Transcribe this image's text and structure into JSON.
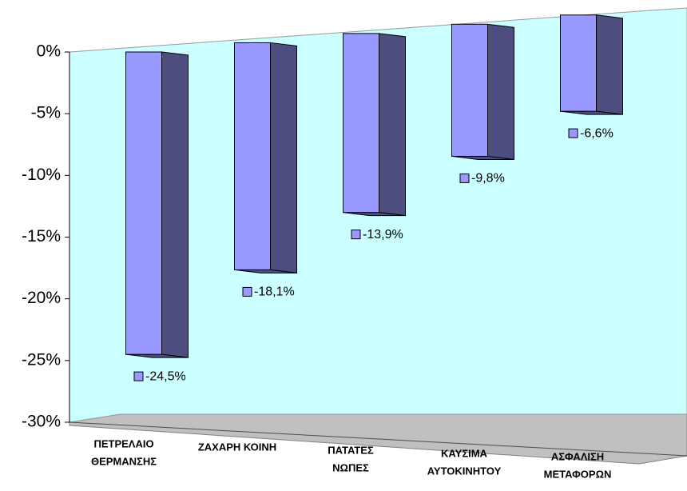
{
  "chart_data": {
    "type": "bar3d",
    "categories": [
      [
        "ΠΕΤΡΕΛΑΙΟ",
        "ΘΕΡΜΑΝΣΗΣ"
      ],
      [
        "ΖΑΧΑΡΗ ΚΟΙΝΗ"
      ],
      [
        "ΠΑΤΑΤΕΣ",
        "ΝΩΠΕΣ"
      ],
      [
        "ΚΑΥΣΙΜΑ",
        "ΑΥΤΟΚΙΝΗΤΟΥ"
      ],
      [
        "ΑΣΦΑΛΙΣΗ",
        "ΜΕΤΑΦΟΡΩΝ"
      ]
    ],
    "values": [
      -24.5,
      -18.1,
      -13.9,
      -9.8,
      -6.6
    ],
    "value_labels": [
      "-24,5%",
      "-18,1%",
      "-13,9%",
      "-9,8%",
      "-6,6%"
    ],
    "color": "#9999ff",
    "side_color": "#4d4d80",
    "ylim": [
      -30,
      0
    ],
    "yticks": [
      {
        "value": -30,
        "label": "-30%"
      },
      {
        "value": -25,
        "label": "-25%"
      },
      {
        "value": -20,
        "label": "-20%"
      },
      {
        "value": -15,
        "label": "-15%"
      },
      {
        "value": -10,
        "label": "-10%"
      },
      {
        "value": -5,
        "label": "-5%"
      },
      {
        "value": 0,
        "label": "0%"
      }
    ],
    "wall_color": "#ccffff"
  }
}
